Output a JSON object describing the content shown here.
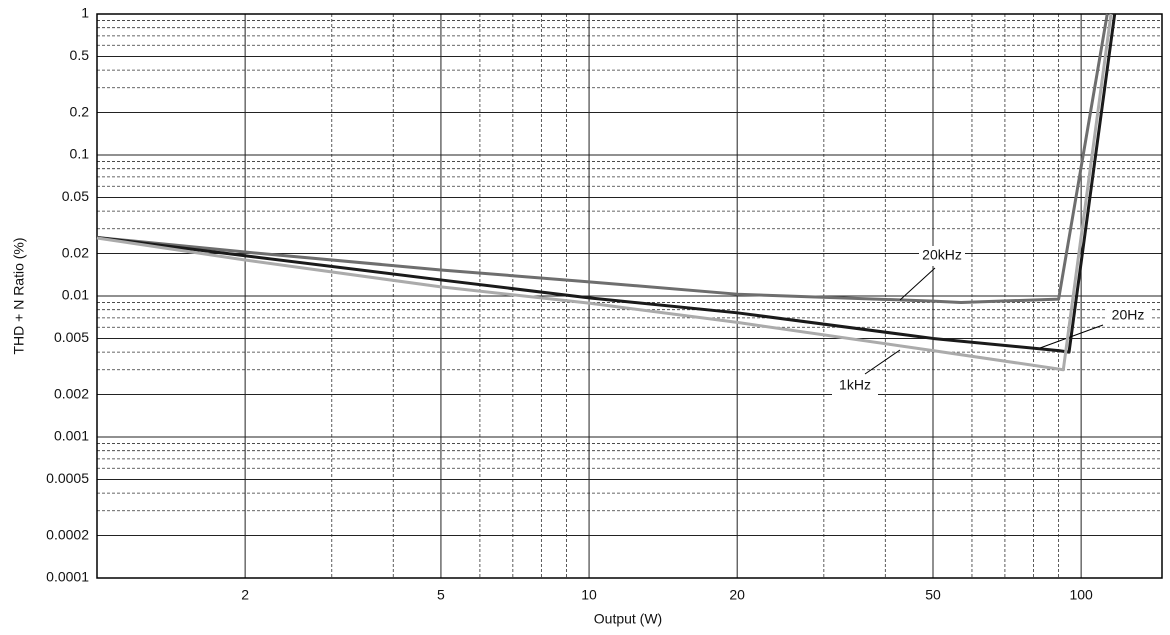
{
  "chart_data": {
    "type": "line",
    "xlabel": "Output (W)",
    "ylabel": "THD + N Ratio (%)",
    "xscale": "log",
    "yscale": "log",
    "grid": true,
    "xlim": [
      1,
      146
    ],
    "ylim": [
      0.0001,
      1
    ],
    "xticks": [
      2,
      5,
      10,
      20,
      50,
      100
    ],
    "yticks": [
      1,
      0.5,
      0.2,
      0.1,
      0.05,
      0.02,
      0.01,
      0.005,
      0.002,
      0.001,
      0.0005,
      0.0002,
      0.0001
    ],
    "x_minor_ticks": [
      3,
      4,
      6,
      7,
      8,
      9,
      30,
      40,
      60,
      70,
      80,
      90
    ],
    "y_minor_ticks": [
      0.9,
      0.8,
      0.7,
      0.6,
      0.4,
      0.3,
      0.09,
      0.08,
      0.07,
      0.06,
      0.04,
      0.03,
      0.009,
      0.008,
      0.007,
      0.006,
      0.004,
      0.003,
      0.0009,
      0.0008,
      0.0007,
      0.0006,
      0.0004,
      0.0003
    ],
    "series": [
      {
        "name": "20kHz",
        "color": "#6e6e6e",
        "x": [
          1,
          2,
          5,
          10,
          20,
          50,
          57,
          90,
          113
        ],
        "values": [
          0.026,
          0.0205,
          0.0153,
          0.0126,
          0.0103,
          0.0092,
          0.009,
          0.0095,
          1
        ]
      },
      {
        "name": "20Hz",
        "color": "#1a1a1a",
        "x": [
          1,
          2,
          5,
          10,
          20,
          50,
          90,
          94.5,
          117
        ],
        "values": [
          0.026,
          0.0193,
          0.013,
          0.0097,
          0.0076,
          0.005,
          0.0041,
          0.004,
          1
        ]
      },
      {
        "name": "1kHz",
        "color": "#ababab",
        "x": [
          1,
          2,
          5,
          10,
          20,
          50,
          92,
          115
        ],
        "values": [
          0.0258,
          0.018,
          0.0116,
          0.0089,
          0.0065,
          0.0041,
          0.003,
          1
        ]
      }
    ]
  }
}
